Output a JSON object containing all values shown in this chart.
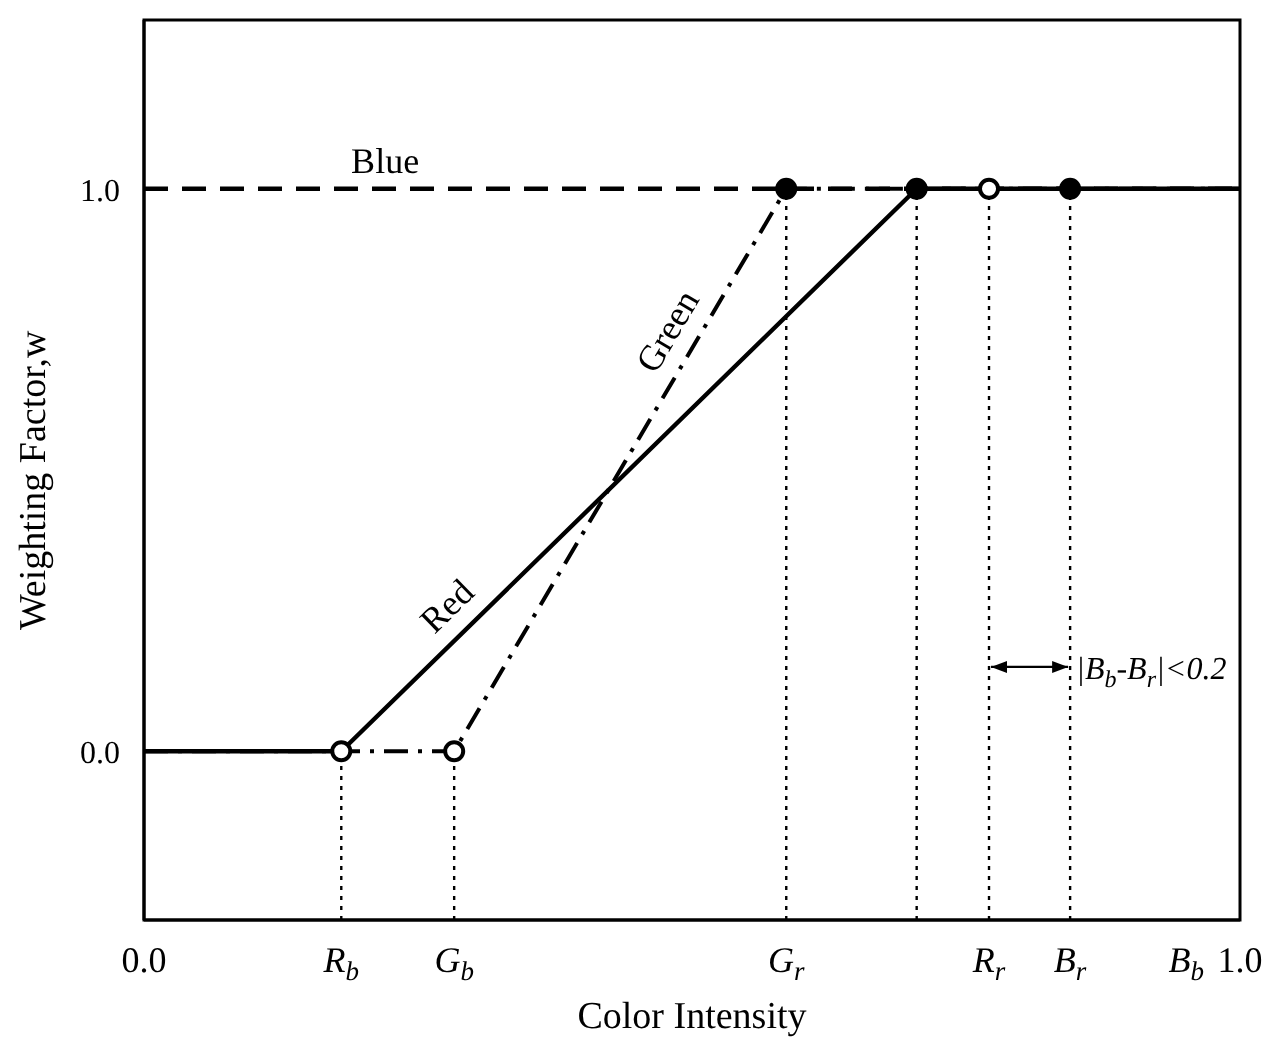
{
  "chart_data": {
    "type": "line",
    "xlabel": "Color Intensity",
    "ylabel": "Weighting Factor,w",
    "xlim": [
      0,
      1
    ],
    "ylim": [
      -0.3,
      1.3
    ],
    "xticks": [
      {
        "value": 0,
        "label": "0.0"
      },
      {
        "value": 0.18,
        "label": "R$_{b}$"
      },
      {
        "value": 0.283,
        "label": "G$_{b}$"
      },
      {
        "value": 0.586,
        "label": "G$_{r}$"
      },
      {
        "value": 0.771,
        "label": "R$_{r}$"
      },
      {
        "value": 0.845,
        "label": "B$_{r}$"
      },
      {
        "value": 0.951,
        "label": "B$_{b}$"
      },
      {
        "value": 1,
        "label": "1.0"
      }
    ],
    "yticks": [
      {
        "value": 0,
        "label": "0.0"
      },
      {
        "value": 1,
        "label": "1.0"
      }
    ],
    "grid": false,
    "legend": false,
    "series": [
      {
        "name": "Red",
        "color": "#000000",
        "line_style": "solid",
        "x": [
          0,
          0.18,
          0.705,
          1
        ],
        "values": [
          0,
          0,
          1,
          1
        ]
      },
      {
        "name": "Green",
        "color": "#000000",
        "line_style": "dashdot",
        "x": [
          0,
          0.283,
          0.586,
          1
        ],
        "values": [
          0,
          0,
          1,
          1
        ]
      },
      {
        "name": "Blue",
        "color": "#000000",
        "line_style": "dashed",
        "x": [
          0,
          1
        ],
        "values": [
          1,
          1
        ]
      },
      {
        "type": "line",
        "color": "#000000",
        "line_style": "dotted",
        "x": [
          0.18,
          0.18
        ],
        "values": [
          -0.3,
          0
        ]
      },
      {
        "type": "line",
        "color": "#000000",
        "line_style": "dotted",
        "x": [
          0.283,
          0.283
        ],
        "values": [
          -0.3,
          0
        ]
      },
      {
        "type": "line",
        "color": "#000000",
        "line_style": "dotted",
        "x": [
          0.586,
          0.586
        ],
        "values": [
          -0.3,
          1
        ]
      },
      {
        "type": "line",
        "color": "#000000",
        "line_style": "dotted",
        "x": [
          0.705,
          0.705
        ],
        "values": [
          -0.3,
          1
        ]
      },
      {
        "type": "line",
        "color": "#000000",
        "line_style": "dotted",
        "x": [
          0.771,
          0.771
        ],
        "values": [
          -0.3,
          1
        ]
      },
      {
        "type": "line",
        "color": "#000000",
        "line_style": "dotted",
        "x": [
          0.845,
          0.845
        ],
        "values": [
          -0.3,
          1
        ]
      },
      {
        "type": "scatter",
        "marker": "circle",
        "color": "#ffffff",
        "x": [
          0.18,
          0.283,
          0.771
        ],
        "values": [
          0,
          0,
          1
        ]
      },
      {
        "type": "scatter",
        "marker": "circle",
        "color": "#000000",
        "x": [
          0.586,
          0.705,
          0.845
        ],
        "values": [
          1,
          1,
          1
        ]
      }
    ],
    "annotations": [
      {
        "text": "|B$_{b}$-B$_{r}$|<0.2",
        "x": 0.845,
        "y": 0.15
      }
    ]
  }
}
